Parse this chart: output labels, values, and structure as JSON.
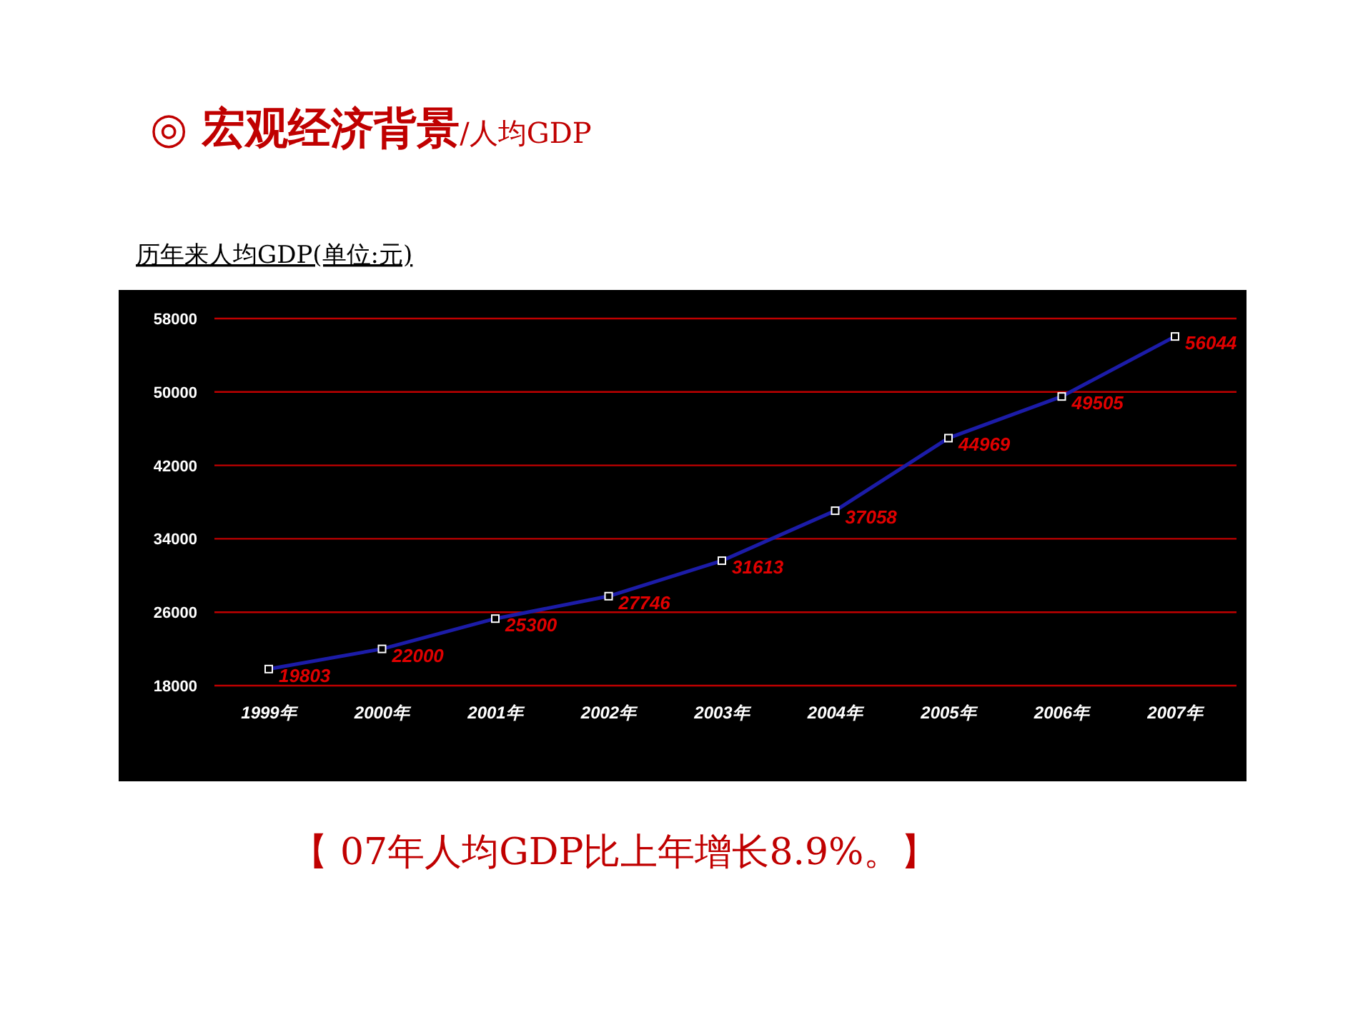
{
  "chart_data": {
    "type": "line",
    "title": "**◎ 宏观经济背景**/人均GDP",
    "subtitle": "历年来人均GDP(单位:元)",
    "categories": [
      "1999年",
      "2000年",
      "2001年",
      "2002年",
      "2003年",
      "2004年",
      "2005年",
      "2006年",
      "2007年"
    ],
    "series": [
      {
        "color": "#1c1ca8",
        "values": [
          19803,
          22000,
          25300,
          27746,
          31613,
          37058,
          44969,
          49505,
          56044
        ]
      }
    ],
    "ylim": [
      18000,
      58000
    ],
    "yticks": [
      18000,
      26000,
      34000,
      42000,
      50000,
      58000
    ],
    "grid": "y",
    "marker": "square",
    "line_style": "solid",
    "data_labels": true,
    "annotations": [
      "【 07年人均GDP比上年增长8.9%。】"
    ]
  }
}
